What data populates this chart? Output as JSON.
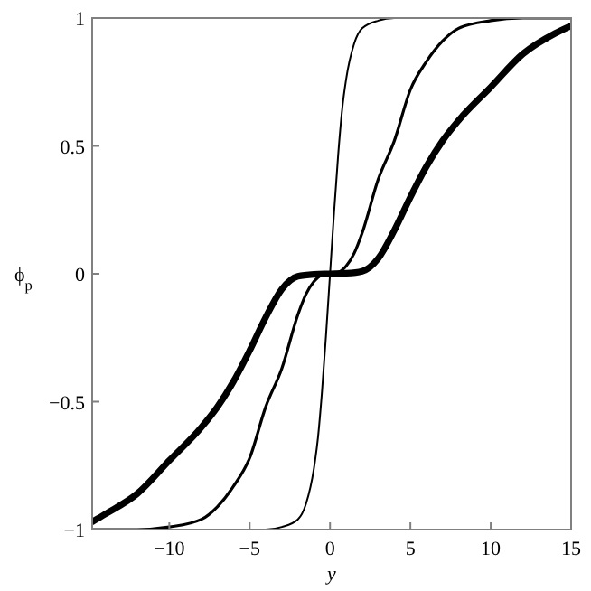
{
  "chart_data": {
    "type": "line",
    "xlabel": "y",
    "ylabel": "ϕ$_{p}$",
    "xlim": [
      -14.8,
      15
    ],
    "ylim": [
      -1,
      1
    ],
    "xticks": [
      -10,
      -5,
      0,
      5,
      10,
      15
    ],
    "yticks": [
      -1,
      -0.5,
      0,
      0.5,
      1
    ],
    "grid": false,
    "marker": "none",
    "line_style": "solid",
    "series": [
      {
        "color": "#000000",
        "x": [
          -14.8,
          -4,
          -3,
          -2,
          -1.5,
          -1,
          -0.75,
          -0.5,
          -0.25,
          0,
          0.25,
          0.5,
          0.75,
          1,
          1.5,
          2,
          3,
          4,
          15
        ],
        "values": [
          -1,
          -1,
          -0.99,
          -0.96,
          -0.9,
          -0.76,
          -0.64,
          -0.46,
          -0.24,
          0,
          0.24,
          0.46,
          0.64,
          0.76,
          0.9,
          0.96,
          0.99,
          1,
          1
        ]
      },
      {
        "color": "#000000",
        "x": [
          -14.8,
          -12,
          -10,
          -8,
          -7,
          -6,
          -5,
          -4,
          -3,
          -2,
          -1.5,
          -1,
          -0.5,
          0,
          0.5,
          1,
          1.5,
          2,
          3,
          4,
          5,
          6,
          7,
          8,
          10,
          12,
          15
        ],
        "values": [
          -1,
          -1,
          -0.99,
          -0.96,
          -0.91,
          -0.83,
          -0.72,
          -0.52,
          -0.37,
          -0.16,
          -0.08,
          -0.03,
          -0.005,
          0,
          0.005,
          0.03,
          0.08,
          0.16,
          0.37,
          0.52,
          0.72,
          0.83,
          0.91,
          0.96,
          0.99,
          1,
          1
        ]
      },
      {
        "color": "#000000",
        "x": [
          -14.8,
          -14,
          -12,
          -10,
          -8,
          -7,
          -6,
          -5,
          -4,
          -3,
          -2,
          -1,
          0,
          1,
          2,
          3,
          4,
          5,
          6,
          7,
          8,
          10,
          12,
          14,
          15
        ],
        "values": [
          -0.97,
          -0.94,
          -0.86,
          -0.73,
          -0.6,
          -0.52,
          -0.42,
          -0.3,
          -0.17,
          -0.06,
          -0.01,
          -0.002,
          0,
          0.002,
          0.01,
          0.06,
          0.17,
          0.3,
          0.42,
          0.52,
          0.6,
          0.73,
          0.86,
          0.94,
          0.97
        ]
      }
    ]
  }
}
